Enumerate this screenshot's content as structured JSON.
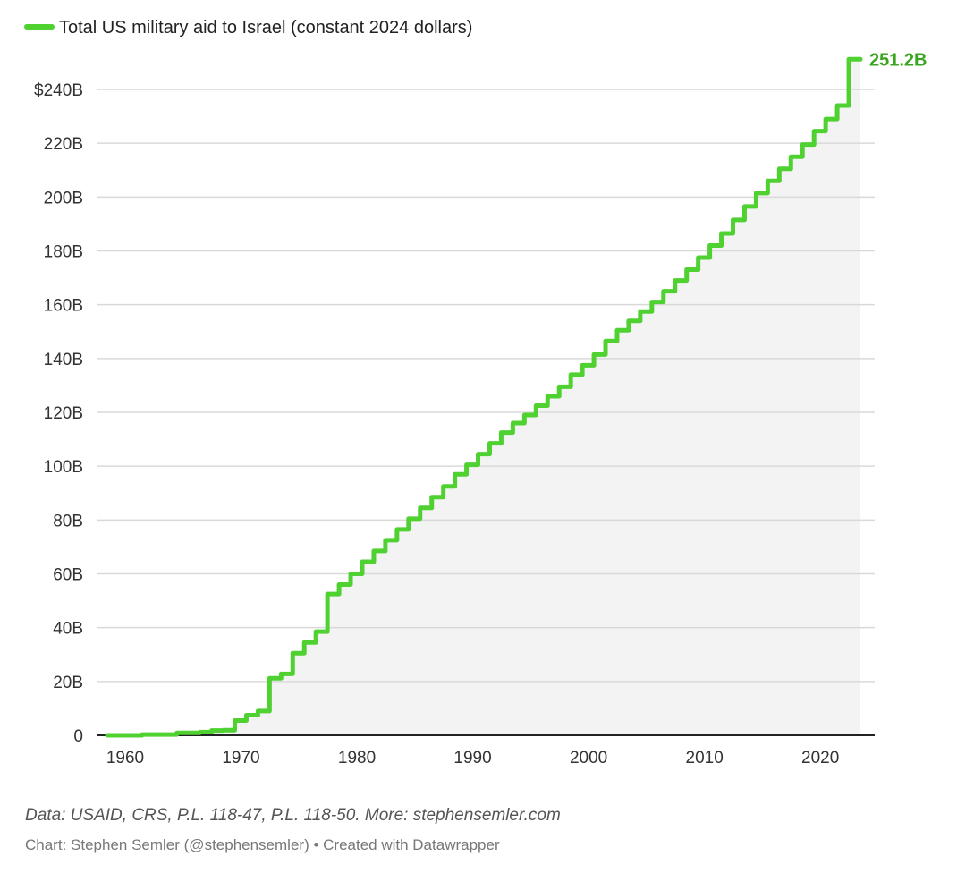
{
  "chart_data": {
    "type": "area",
    "step": true,
    "legend_placement": "top-left",
    "grid": true,
    "x_axis": {
      "range": [
        1959,
        2024
      ],
      "ticks": [
        1960,
        1970,
        1980,
        1990,
        2000,
        2010,
        2020
      ],
      "tick_labels": [
        "1960",
        "1970",
        "1980",
        "1990",
        "2000",
        "2010",
        "2020"
      ]
    },
    "y_axis": {
      "range": [
        0,
        251.2
      ],
      "ticks": [
        0,
        20,
        40,
        60,
        80,
        100,
        120,
        140,
        160,
        180,
        200,
        220,
        240
      ],
      "tick_labels": [
        "0",
        "20B",
        "40B",
        "60B",
        "80B",
        "100B",
        "120B",
        "140B",
        "160B",
        "180B",
        "200B",
        "220B",
        "240B"
      ],
      "top_label": "$240B"
    },
    "series": [
      {
        "name": "Total US military aid to Israel (constant 2024 dollars)",
        "color": "#4fd131",
        "x": [
          1959,
          1960,
          1961,
          1962,
          1963,
          1964,
          1965,
          1966,
          1967,
          1968,
          1969,
          1970,
          1971,
          1972,
          1973,
          1974,
          1975,
          1976,
          1977,
          1978,
          1979,
          1980,
          1981,
          1982,
          1983,
          1984,
          1985,
          1986,
          1987,
          1988,
          1989,
          1990,
          1991,
          1992,
          1993,
          1994,
          1995,
          1996,
          1997,
          1998,
          1999,
          2000,
          2001,
          2002,
          2003,
          2004,
          2005,
          2006,
          2007,
          2008,
          2009,
          2010,
          2011,
          2012,
          2013,
          2014,
          2015,
          2016,
          2017,
          2018,
          2019,
          2020,
          2021,
          2022,
          2023,
          2024
        ],
        "values": [
          0,
          0,
          0,
          0.3,
          0.3,
          0.3,
          0.9,
          0.9,
          1.2,
          1.8,
          1.9,
          5.5,
          7.5,
          9,
          21.2,
          22.8,
          30.5,
          34.5,
          38.5,
          52.5,
          56,
          60,
          64.5,
          68.5,
          72.5,
          76.5,
          80.5,
          84.5,
          88.5,
          92.5,
          97,
          100.5,
          104.5,
          108.5,
          112.5,
          116,
          119,
          122.5,
          126,
          129.5,
          134,
          137.5,
          141.5,
          146.5,
          150.5,
          154,
          157.5,
          161,
          165,
          169,
          173,
          177.5,
          182,
          186.5,
          191.5,
          196.5,
          201.5,
          206,
          210.5,
          215,
          219.5,
          224.5,
          229,
          234,
          251.2,
          251.2
        ],
        "end_label": "251.2B"
      }
    ]
  },
  "legend": {
    "label": "Total US military aid to Israel (constant 2024 dollars)",
    "color": "#4fd131"
  },
  "footer": {
    "source": "Data: USAID, CRS, P.L. 118-47, P.L. 118-50. More: stephensemler.com",
    "credit": "Chart: Stephen Semler (@stephensemler) • Created with Datawrapper"
  },
  "colors": {
    "line": "#4fd131",
    "label_accent": "#3aa51f",
    "area_fill": "#f3f3f3",
    "gridline": "#d9d9d9",
    "axis": "#222222"
  }
}
